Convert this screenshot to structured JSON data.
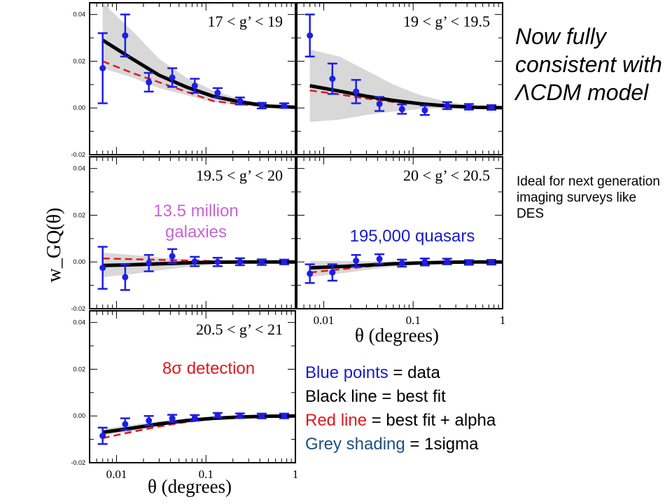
{
  "slide": {
    "headline": "Now fully consistent with ΛCDM model",
    "side_note": "Ideal for next generation imaging surveys like DES",
    "galaxy_count": "13.5 million galaxies",
    "quasar_count": "195,000 quasars",
    "detection": "8σ detection",
    "legend": [
      {
        "key": "Blue points",
        "rest": " = data",
        "key_color": "#1a1acc"
      },
      {
        "key": "Black line",
        "rest": " = best fit",
        "key_color": "#000000"
      },
      {
        "key": "Red line",
        "rest": " = best fit + alpha",
        "key_color": "#e0181e"
      },
      {
        "key": "Grey shading",
        "rest": " = 1sigma",
        "key_color": "#1f5080"
      }
    ]
  },
  "colors": {
    "data": "#1e1ee6",
    "best_fit": "#000000",
    "alpha_fit": "#e01a1a",
    "shading": "#d8d8d8"
  },
  "chart_data": {
    "type": "scatter",
    "ylabel": "w_GQ(θ)",
    "xlabel": "θ (degrees)",
    "x_scale": "log",
    "xlim": [
      0.005,
      1.0
    ],
    "ylim": [
      -0.02,
      0.045
    ],
    "x_ticks": [
      "0.01",
      "0.1",
      "1"
    ],
    "y_ticks": [
      "-0.02",
      "0.00",
      "0.02",
      "0.04"
    ],
    "panels": [
      {
        "label": "17 < g’ < 19",
        "points": [
          {
            "x": 0.007,
            "y": 0.017,
            "err": 0.015
          },
          {
            "x": 0.0125,
            "y": 0.031,
            "err": 0.009
          },
          {
            "x": 0.023,
            "y": 0.011,
            "err": 0.004
          },
          {
            "x": 0.042,
            "y": 0.013,
            "err": 0.004
          },
          {
            "x": 0.075,
            "y": 0.0095,
            "err": 0.003
          },
          {
            "x": 0.135,
            "y": 0.0065,
            "err": 0.002
          },
          {
            "x": 0.24,
            "y": 0.003,
            "err": 0.0015
          },
          {
            "x": 0.42,
            "y": 0.001,
            "err": 0.0012
          },
          {
            "x": 0.75,
            "y": 0.001,
            "err": 0.001
          }
        ],
        "fit_black": [
          [
            0.007,
            0.029
          ],
          [
            0.015,
            0.021
          ],
          [
            0.03,
            0.014
          ],
          [
            0.06,
            0.009
          ],
          [
            0.12,
            0.005
          ],
          [
            0.25,
            0.0025
          ],
          [
            0.5,
            0.0008
          ],
          [
            1.0,
            0.0003
          ]
        ],
        "fit_red": [
          [
            0.007,
            0.02
          ],
          [
            0.015,
            0.015
          ],
          [
            0.03,
            0.011
          ],
          [
            0.06,
            0.007
          ],
          [
            0.12,
            0.003
          ],
          [
            0.25,
            0.0015
          ],
          [
            0.5,
            0.0008
          ],
          [
            1.0,
            0.0005
          ]
        ],
        "band_upper": [
          [
            0.007,
            0.045
          ],
          [
            0.015,
            0.033
          ],
          [
            0.03,
            0.021
          ],
          [
            0.06,
            0.013
          ],
          [
            0.12,
            0.0075
          ],
          [
            0.25,
            0.0035
          ],
          [
            0.5,
            0.0015
          ],
          [
            1.0,
            0.0008
          ]
        ],
        "band_lower": [
          [
            0.007,
            0.017
          ],
          [
            0.015,
            0.013
          ],
          [
            0.03,
            0.0085
          ],
          [
            0.06,
            0.0055
          ],
          [
            0.12,
            0.0025
          ],
          [
            0.25,
            0.0012
          ],
          [
            0.5,
            0.0003
          ],
          [
            1.0,
            0.0001
          ]
        ]
      },
      {
        "label": "19 < g’ < 19.5",
        "points": [
          {
            "x": 0.007,
            "y": 0.031,
            "err": 0.009
          },
          {
            "x": 0.0125,
            "y": 0.0125,
            "err": 0.0065
          },
          {
            "x": 0.023,
            "y": 0.007,
            "err": 0.005
          },
          {
            "x": 0.042,
            "y": 0.0017,
            "err": 0.003
          },
          {
            "x": 0.075,
            "y": -0.0005,
            "err": 0.002
          },
          {
            "x": 0.135,
            "y": -0.001,
            "err": 0.002
          },
          {
            "x": 0.24,
            "y": 0.001,
            "err": 0.0015
          },
          {
            "x": 0.42,
            "y": 0.0005,
            "err": 0.0012
          },
          {
            "x": 0.75,
            "y": 0.0002,
            "err": 0.001
          }
        ],
        "fit_black": [
          [
            0.007,
            0.0095
          ],
          [
            0.015,
            0.0072
          ],
          [
            0.03,
            0.005
          ],
          [
            0.06,
            0.0032
          ],
          [
            0.12,
            0.0018
          ],
          [
            0.25,
            0.0008
          ],
          [
            0.5,
            0.0003
          ],
          [
            1.0,
            0.0001
          ]
        ],
        "fit_red": [
          [
            0.007,
            0.0075
          ],
          [
            0.015,
            0.0058
          ],
          [
            0.03,
            0.004
          ],
          [
            0.06,
            0.0026
          ],
          [
            0.12,
            0.0016
          ],
          [
            0.25,
            0.0008
          ],
          [
            0.5,
            0.0004
          ],
          [
            1.0,
            0.0002
          ]
        ],
        "band_upper": [
          [
            0.007,
            0.025
          ],
          [
            0.015,
            0.022
          ],
          [
            0.03,
            0.016
          ],
          [
            0.06,
            0.01
          ],
          [
            0.12,
            0.0055
          ],
          [
            0.25,
            0.0025
          ],
          [
            0.5,
            0.001
          ],
          [
            1.0,
            0.0004
          ]
        ],
        "band_lower": [
          [
            0.007,
            -0.006
          ],
          [
            0.015,
            -0.005
          ],
          [
            0.03,
            -0.003
          ],
          [
            0.06,
            -0.0015
          ],
          [
            0.12,
            -0.0005
          ],
          [
            0.25,
            0.0
          ],
          [
            0.5,
            0.0
          ],
          [
            1.0,
            0.0
          ]
        ]
      },
      {
        "label": "19.5 < g’ < 20",
        "points": [
          {
            "x": 0.007,
            "y": -0.0025,
            "err": 0.009
          },
          {
            "x": 0.0125,
            "y": -0.0065,
            "err": 0.0055
          },
          {
            "x": 0.023,
            "y": -0.0005,
            "err": 0.0035
          },
          {
            "x": 0.042,
            "y": 0.0025,
            "err": 0.003
          },
          {
            "x": 0.075,
            "y": 0.0002,
            "err": 0.002
          },
          {
            "x": 0.135,
            "y": 0.0,
            "err": 0.0018
          },
          {
            "x": 0.24,
            "y": 0.0001,
            "err": 0.0015
          },
          {
            "x": 0.42,
            "y": -0.0001,
            "err": 0.0012
          },
          {
            "x": 0.75,
            "y": 0.0,
            "err": 0.001
          }
        ],
        "fit_black": [
          [
            0.007,
            -0.0015
          ],
          [
            0.015,
            -0.0012
          ],
          [
            0.03,
            -0.0008
          ],
          [
            0.06,
            -0.0004
          ],
          [
            0.12,
            -0.0001
          ],
          [
            0.25,
            0.0
          ],
          [
            0.5,
            0.0
          ],
          [
            1.0,
            0.0
          ]
        ],
        "fit_red": [
          [
            0.007,
            0.0015
          ],
          [
            0.015,
            0.0012
          ],
          [
            0.03,
            0.0009
          ],
          [
            0.06,
            0.0006
          ],
          [
            0.12,
            0.0004
          ],
          [
            0.25,
            0.0002
          ],
          [
            0.5,
            0.0001
          ],
          [
            1.0,
            0.0
          ]
        ],
        "band_upper": [
          [
            0.007,
            0.004
          ],
          [
            0.015,
            0.003
          ],
          [
            0.03,
            0.002
          ],
          [
            0.06,
            0.0012
          ],
          [
            0.12,
            0.0007
          ],
          [
            0.25,
            0.0003
          ],
          [
            0.5,
            0.0001
          ],
          [
            1.0,
            0.0
          ]
        ],
        "band_lower": [
          [
            0.007,
            -0.0065
          ],
          [
            0.015,
            -0.0052
          ],
          [
            0.03,
            -0.0036
          ],
          [
            0.06,
            -0.0022
          ],
          [
            0.12,
            -0.0012
          ],
          [
            0.25,
            -0.0005
          ],
          [
            0.5,
            -0.0002
          ],
          [
            1.0,
            0.0
          ]
        ]
      },
      {
        "label": "20 < g’ < 20.5",
        "points": [
          {
            "x": 0.007,
            "y": -0.005,
            "err": 0.004
          },
          {
            "x": 0.0125,
            "y": -0.0045,
            "err": 0.0035
          },
          {
            "x": 0.023,
            "y": 0.0005,
            "err": 0.0025
          },
          {
            "x": 0.042,
            "y": 0.0013,
            "err": 0.002
          },
          {
            "x": 0.075,
            "y": -0.0005,
            "err": 0.0015
          },
          {
            "x": 0.135,
            "y": 0.0,
            "err": 0.0015
          },
          {
            "x": 0.24,
            "y": 0.0002,
            "err": 0.0012
          },
          {
            "x": 0.42,
            "y": -0.0002,
            "err": 0.001
          },
          {
            "x": 0.75,
            "y": -0.0001,
            "err": 0.001
          }
        ],
        "fit_black": [
          [
            0.007,
            -0.0025
          ],
          [
            0.015,
            -0.002
          ],
          [
            0.03,
            -0.0014
          ],
          [
            0.06,
            -0.0008
          ],
          [
            0.12,
            -0.0004
          ],
          [
            0.25,
            -0.0001
          ],
          [
            0.5,
            0.0
          ],
          [
            1.0,
            0.0
          ]
        ],
        "fit_red": [
          [
            0.007,
            -0.0045
          ],
          [
            0.015,
            -0.0032
          ],
          [
            0.03,
            -0.002
          ],
          [
            0.06,
            -0.001
          ],
          [
            0.12,
            -0.0004
          ],
          [
            0.25,
            -0.0001
          ],
          [
            0.5,
            0.0
          ],
          [
            1.0,
            0.0
          ]
        ],
        "band_upper": [
          [
            0.007,
            0.0005
          ],
          [
            0.015,
            0.0004
          ],
          [
            0.03,
            0.0003
          ],
          [
            0.06,
            0.0002
          ],
          [
            0.12,
            0.0001
          ],
          [
            0.25,
            0.0
          ],
          [
            0.5,
            0.0
          ],
          [
            1.0,
            0.0
          ]
        ],
        "band_lower": [
          [
            0.007,
            -0.0065
          ],
          [
            0.015,
            -0.005
          ],
          [
            0.03,
            -0.0034
          ],
          [
            0.06,
            -0.002
          ],
          [
            0.12,
            -0.001
          ],
          [
            0.25,
            -0.0004
          ],
          [
            0.5,
            -0.0001
          ],
          [
            1.0,
            0.0
          ]
        ]
      },
      {
        "label": "20.5 < g’ < 21",
        "points": [
          {
            "x": 0.007,
            "y": -0.0085,
            "err": 0.0035
          },
          {
            "x": 0.0125,
            "y": -0.0035,
            "err": 0.0025
          },
          {
            "x": 0.023,
            "y": -0.002,
            "err": 0.002
          },
          {
            "x": 0.042,
            "y": -0.001,
            "err": 0.0015
          },
          {
            "x": 0.075,
            "y": -0.0008,
            "err": 0.0012
          },
          {
            "x": 0.135,
            "y": 0.0003,
            "err": 0.001
          },
          {
            "x": 0.24,
            "y": 0.0001,
            "err": 0.001
          },
          {
            "x": 0.42,
            "y": 0.0,
            "err": 0.001
          },
          {
            "x": 0.75,
            "y": 0.0,
            "err": 0.001
          }
        ],
        "fit_black": [
          [
            0.007,
            -0.007
          ],
          [
            0.015,
            -0.0052
          ],
          [
            0.03,
            -0.0034
          ],
          [
            0.06,
            -0.002
          ],
          [
            0.12,
            -0.001
          ],
          [
            0.25,
            -0.0004
          ],
          [
            0.5,
            -0.0001
          ],
          [
            1.0,
            0.0
          ]
        ],
        "fit_red": [
          [
            0.007,
            -0.0095
          ],
          [
            0.015,
            -0.0068
          ],
          [
            0.03,
            -0.0045
          ],
          [
            0.06,
            -0.0026
          ],
          [
            0.12,
            -0.0012
          ],
          [
            0.25,
            -0.0004
          ],
          [
            0.5,
            -0.0001
          ],
          [
            1.0,
            0.0
          ]
        ],
        "band_upper": [
          [
            0.007,
            -0.0055
          ],
          [
            0.015,
            -0.0038
          ],
          [
            0.03,
            -0.0022
          ],
          [
            0.06,
            -0.0012
          ],
          [
            0.12,
            -0.0005
          ],
          [
            0.25,
            -0.0001
          ],
          [
            0.5,
            0.0
          ],
          [
            1.0,
            0.0
          ]
        ],
        "band_lower": [
          [
            0.007,
            -0.0085
          ],
          [
            0.015,
            -0.0065
          ],
          [
            0.03,
            -0.0045
          ],
          [
            0.06,
            -0.0028
          ],
          [
            0.12,
            -0.0014
          ],
          [
            0.25,
            -0.0006
          ],
          [
            0.5,
            -0.0002
          ],
          [
            1.0,
            0.0
          ]
        ]
      }
    ]
  }
}
